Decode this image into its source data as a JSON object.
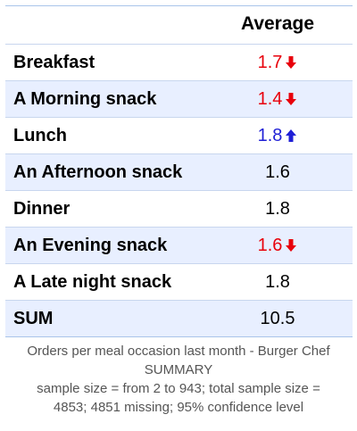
{
  "chart_data": {
    "type": "table",
    "column_header": "Average",
    "rows": [
      {
        "label": "Breakfast",
        "value": "1.7",
        "trend": "down",
        "color": "#e8000b"
      },
      {
        "label": "A Morning snack",
        "value": "1.4",
        "trend": "down",
        "color": "#e8000b"
      },
      {
        "label": "Lunch",
        "value": "1.8",
        "trend": "up",
        "color": "#1f1fd6"
      },
      {
        "label": "An Afternoon snack",
        "value": "1.6",
        "trend": "none",
        "color": "#000000"
      },
      {
        "label": "Dinner",
        "value": "1.8",
        "trend": "none",
        "color": "#000000"
      },
      {
        "label": "An Evening snack",
        "value": "1.6",
        "trend": "down",
        "color": "#e8000b"
      },
      {
        "label": "A Late night snack",
        "value": "1.8",
        "trend": "none",
        "color": "#000000"
      },
      {
        "label": "SUM",
        "value": "10.5",
        "trend": "none",
        "color": "#000000"
      }
    ]
  },
  "caption": {
    "line1": "Orders per meal occasion last month - Burger Chef",
    "line2": "SUMMARY",
    "line3": "sample size = from 2 to 943; total sample size =",
    "line4": "4853; 4851 missing; 95% confidence level"
  },
  "colors": {
    "row_shade": "#e8efff",
    "border": "#a9c4ea",
    "down": "#e8000b",
    "up": "#1f1fd6",
    "caption_text": "#555555"
  }
}
